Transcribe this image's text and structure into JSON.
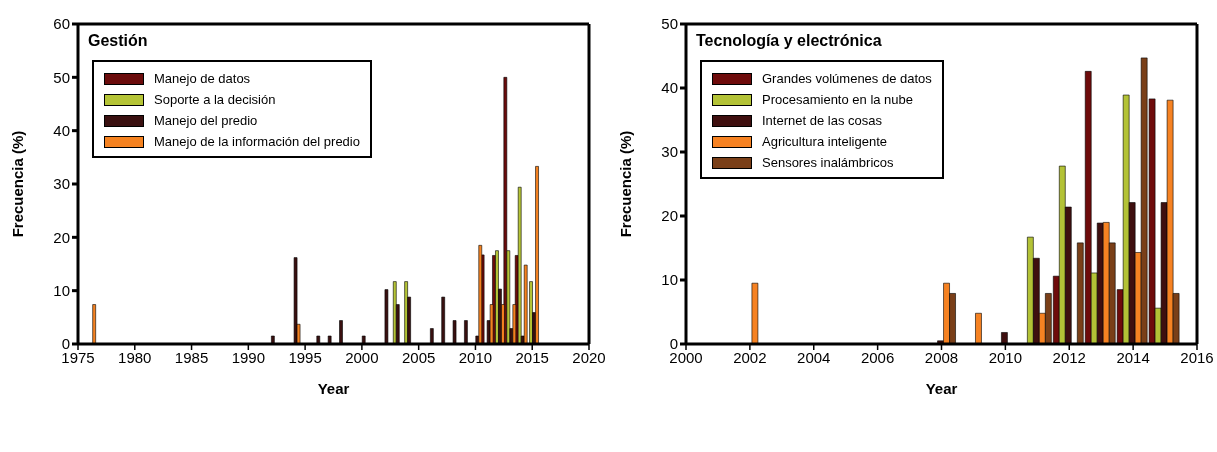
{
  "chart_data": [
    {
      "type": "bar",
      "title": "Gestión",
      "xlabel": "Year",
      "ylabel": "Frecuencia (%)",
      "legend": "top left",
      "x": [
        1976,
        1992,
        1994,
        1996,
        1997,
        1998,
        2000,
        2002,
        2003,
        2004,
        2006,
        2007,
        2008,
        2009,
        2010,
        2011,
        2012,
        2013,
        2014,
        2015
      ],
      "xlim": [
        1975,
        2020
      ],
      "xticks": [
        1975,
        1980,
        1985,
        1990,
        1995,
        2000,
        2005,
        2010,
        2015,
        2020
      ],
      "ylim": [
        0,
        60
      ],
      "yticks": [
        0,
        10,
        20,
        30,
        40,
        50,
        60
      ],
      "series": [
        {
          "name": "Manejo de datos",
          "color": "#6b0c0c",
          "values": [
            null,
            null,
            null,
            null,
            null,
            null,
            null,
            null,
            null,
            null,
            null,
            null,
            null,
            null,
            null,
            16.7,
            16.6,
            50,
            16.6,
            null
          ]
        },
        {
          "name": "Soporte a la decisión",
          "color": "#b5c436",
          "values": [
            null,
            null,
            null,
            null,
            null,
            null,
            null,
            null,
            11.7,
            11.7,
            null,
            null,
            null,
            null,
            null,
            null,
            17.5,
            17.5,
            29.4,
            11.7
          ]
        },
        {
          "name": "Manejo del predio",
          "color": "#3a1010",
          "values": [
            null,
            1.5,
            16.2,
            1.5,
            1.5,
            4.4,
            1.5,
            10.2,
            7.4,
            8.8,
            2.9,
            8.8,
            4.4,
            4.4,
            1.5,
            4.4,
            10.3,
            2.9,
            1.5,
            5.9
          ]
        },
        {
          "name": "Manejo de la información del predio",
          "color": "#f58220",
          "values": [
            7.4,
            null,
            3.7,
            null,
            null,
            null,
            null,
            null,
            null,
            null,
            null,
            null,
            null,
            null,
            18.5,
            7.4,
            7.4,
            7.4,
            14.8,
            33.3
          ]
        }
      ]
    },
    {
      "type": "bar",
      "title": "Tecnología y electrónica",
      "xlabel": "Year",
      "ylabel": "Frecuencia (%)",
      "legend": "top left",
      "x": [
        2002,
        2008,
        2009,
        2010,
        2011,
        2012,
        2013,
        2014,
        2015
      ],
      "xlim": [
        2000,
        2016
      ],
      "xticks": [
        2000,
        2002,
        2004,
        2006,
        2008,
        2010,
        2012,
        2014,
        2016
      ],
      "ylim": [
        0,
        50
      ],
      "yticks": [
        0,
        10,
        20,
        30,
        40,
        50
      ],
      "series": [
        {
          "name": "Grandes volúmenes de datos",
          "color": "#6e0b0b",
          "values": [
            null,
            null,
            null,
            null,
            null,
            10.6,
            42.6,
            8.5,
            38.3
          ]
        },
        {
          "name": "Procesamiento en la nube",
          "color": "#b3c236",
          "values": [
            null,
            null,
            null,
            null,
            16.7,
            27.8,
            11.1,
            38.9,
            5.6
          ]
        },
        {
          "name": "Internet de las cosas",
          "color": "#3f0f0f",
          "values": [
            null,
            0.5,
            null,
            1.8,
            13.4,
            21.4,
            18.9,
            22.1,
            22.1
          ]
        },
        {
          "name": "Agricultura inteligente",
          "color": "#f68222",
          "values": [
            9.5,
            9.5,
            4.8,
            null,
            4.8,
            null,
            19.0,
            14.3,
            38.1
          ]
        },
        {
          "name": "Sensores inalámbricos",
          "color": "#7a3f18",
          "values": [
            null,
            7.9,
            null,
            null,
            7.9,
            15.8,
            15.8,
            44.7,
            7.9
          ]
        }
      ]
    }
  ]
}
